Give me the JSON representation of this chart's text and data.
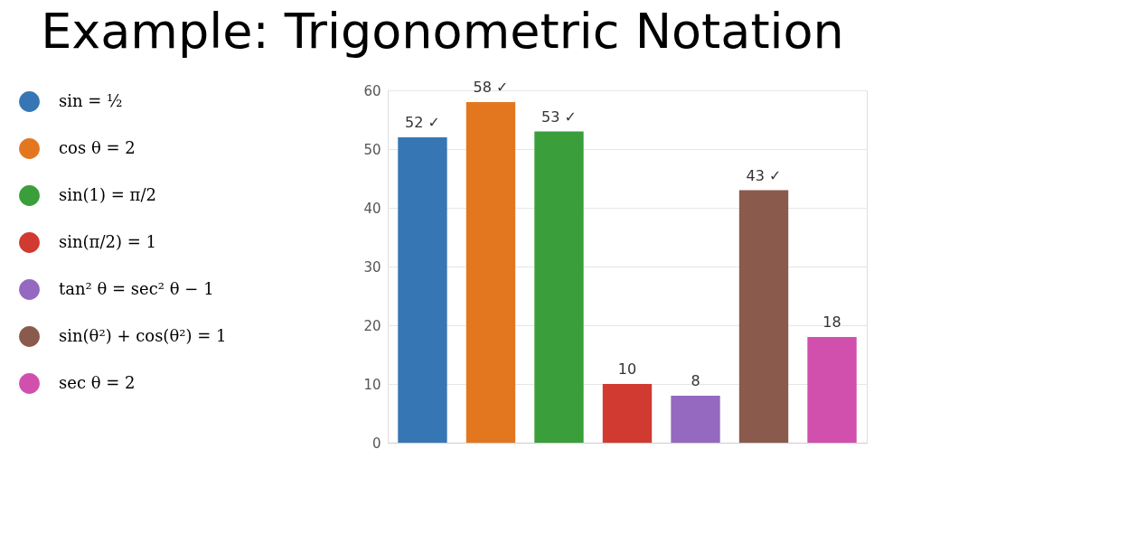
{
  "chart_data": {
    "type": "bar",
    "title": "Example: Trigonometric Notation",
    "categories": [
      null
    ],
    "series": [
      {
        "name": "sin = ½",
        "color": "#3776b4",
        "values": [
          52
        ],
        "value_labels": [
          "52 ✓"
        ]
      },
      {
        "name": "cos θ = 2",
        "color": "#e37720",
        "values": [
          58
        ],
        "value_labels": [
          "58 ✓"
        ]
      },
      {
        "name": "sin(1) = π/2",
        "color": "#3a9e3a",
        "values": [
          53
        ],
        "value_labels": [
          "53 ✓"
        ]
      },
      {
        "name": "sin(π/2) = 1",
        "color": "#d03a30",
        "values": [
          10
        ],
        "value_labels": [
          "10"
        ]
      },
      {
        "name": "tan² θ = sec² θ − 1",
        "color": "#9569bf",
        "values": [
          8
        ],
        "value_labels": [
          "8"
        ]
      },
      {
        "name": "sin(θ²) + cos(θ²) = 1",
        "color": "#8a5a4d",
        "values": [
          43
        ],
        "value_labels": [
          "43 ✓"
        ]
      },
      {
        "name": "sec θ = 2",
        "color": "#d150ae",
        "values": [
          18
        ],
        "value_labels": [
          "18"
        ]
      }
    ],
    "ylim": [
      0,
      60
    ],
    "yticks": [
      0,
      10,
      20,
      30,
      40,
      50,
      60
    ],
    "grid": "y",
    "legend": "left",
    "tick_labels": "y"
  }
}
